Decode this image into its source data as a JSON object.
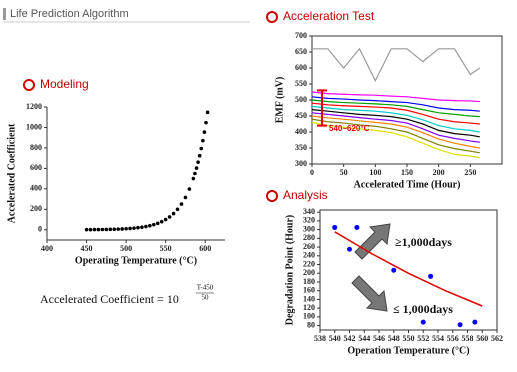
{
  "header": {
    "title": "Life Prediction Algorithm"
  },
  "formula": {
    "text": "Accelerated Coefficient = 10",
    "numerator": "T-450",
    "denominator": "50"
  },
  "chart_data": [
    {
      "type": "scatter",
      "title": "Modeling",
      "x_label": "Operating Temperature (°C)",
      "y_label": "Accelerated Coefficient",
      "color": "#000000",
      "x": [
        450,
        455,
        460,
        465,
        470,
        475,
        480,
        485,
        490,
        495,
        500,
        505,
        510,
        515,
        520,
        525,
        530,
        535,
        540,
        545,
        550,
        555,
        560,
        565,
        570,
        575,
        580,
        585,
        587,
        589,
        591,
        593,
        595,
        597,
        599,
        601,
        603
      ],
      "values": [
        1,
        1.26,
        1.58,
        2,
        2.51,
        3.16,
        3.98,
        5.01,
        6.31,
        7.94,
        10,
        12.6,
        15.8,
        20,
        25.1,
        31.6,
        39.8,
        50.1,
        63.1,
        79.4,
        100,
        126,
        158,
        200,
        251,
        316,
        398,
        501,
        550,
        603,
        661,
        724,
        794,
        871,
        955,
        1047,
        1148
      ],
      "xlim": [
        400,
        625
      ],
      "xticks": [
        400,
        450,
        500,
        550,
        600
      ],
      "ylim": [
        -100,
        1200
      ],
      "yticks": [
        0,
        200,
        400,
        600,
        800,
        1000,
        1200
      ]
    },
    {
      "type": "line",
      "title": "Acceleration Test",
      "x_label": "Accelerated Time (Hour)",
      "y_label": "EMF (mV)",
      "annotation": "540~620°C",
      "x": [
        0,
        25,
        50,
        75,
        100,
        125,
        150,
        175,
        200,
        225,
        250,
        265
      ],
      "series": [
        {
          "color": "#999999",
          "values": [
            660,
            660,
            600,
            660,
            560,
            660,
            660,
            620,
            660,
            660,
            580,
            600
          ]
        },
        {
          "color": "#ff00ff",
          "values": [
            525,
            520,
            518,
            516,
            515,
            512,
            510,
            505,
            500,
            498,
            497,
            495
          ]
        },
        {
          "color": "#0000ff",
          "values": [
            510,
            505,
            503,
            500,
            498,
            495,
            492,
            485,
            475,
            470,
            468,
            465
          ]
        },
        {
          "color": "#00a000",
          "values": [
            500,
            495,
            492,
            490,
            488,
            485,
            480,
            470,
            460,
            455,
            450,
            448
          ]
        },
        {
          "color": "#ff0000",
          "values": [
            490,
            485,
            482,
            480,
            478,
            475,
            468,
            455,
            440,
            432,
            428,
            425
          ]
        },
        {
          "color": "#00cccc",
          "values": [
            480,
            475,
            470,
            468,
            465,
            460,
            452,
            438,
            420,
            410,
            405,
            400
          ]
        },
        {
          "color": "#000000",
          "values": [
            470,
            465,
            460,
            455,
            452,
            448,
            440,
            425,
            405,
            395,
            390,
            385
          ]
        },
        {
          "color": "#8000ff",
          "values": [
            460,
            455,
            450,
            445,
            440,
            436,
            428,
            410,
            390,
            380,
            372,
            368
          ]
        },
        {
          "color": "#ff8000",
          "values": [
            450,
            444,
            440,
            435,
            430,
            425,
            415,
            398,
            378,
            365,
            355,
            350
          ]
        },
        {
          "color": "#808000",
          "values": [
            440,
            432,
            428,
            422,
            418,
            410,
            400,
            380,
            360,
            348,
            340,
            335
          ]
        },
        {
          "color": "#e0e000",
          "values": [
            430,
            420,
            415,
            410,
            405,
            398,
            385,
            365,
            345,
            330,
            325,
            320
          ]
        }
      ],
      "xlim": [
        0,
        300
      ],
      "xticks": [
        0,
        50,
        100,
        150,
        200,
        250
      ],
      "ylim": [
        300,
        700
      ],
      "yticks": [
        300,
        350,
        400,
        450,
        500,
        550,
        600,
        650,
        700
      ]
    },
    {
      "type": "scatter",
      "title": "Analysis",
      "x_label": "Operation Temperature (°C)",
      "y_label": "Degradation Point (Hour)",
      "color": "#0000ff",
      "annotations": [
        "≥1,000days",
        "≤ 1,000days"
      ],
      "x": [
        540,
        542,
        543,
        548,
        552,
        553,
        557,
        559
      ],
      "values": [
        305,
        255,
        305,
        207,
        88,
        193,
        82,
        88
      ],
      "trend": {
        "color": "#e00000",
        "x": [
          540,
          545,
          550,
          555,
          560
        ],
        "values": [
          295,
          245,
          200,
          160,
          125
        ]
      },
      "xlim": [
        538,
        562
      ],
      "xticks": [
        538,
        540,
        542,
        544,
        546,
        548,
        550,
        552,
        554,
        556,
        558,
        560,
        562
      ],
      "ylim": [
        70,
        345
      ],
      "yticks": [
        80,
        100,
        120,
        140,
        160,
        180,
        200,
        220,
        240,
        260,
        280,
        300,
        320,
        340
      ]
    }
  ]
}
